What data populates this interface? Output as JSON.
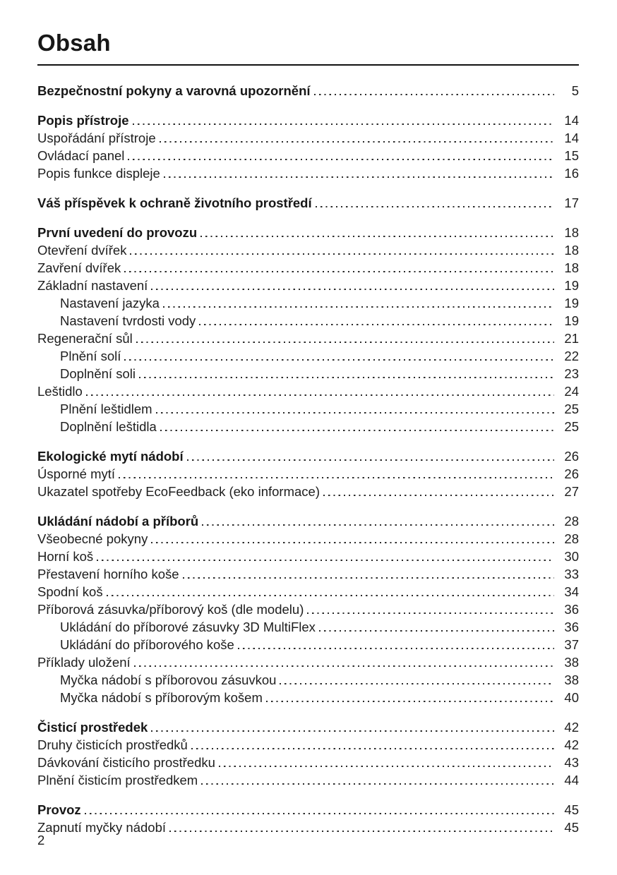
{
  "page": {
    "title": "Obsah",
    "page_number": "2"
  },
  "colors": {
    "text": "#1e1e1e",
    "rule": "#111111",
    "background": "#ffffff"
  },
  "toc": {
    "entries": [
      {
        "label": "Bezpečnostní pokyny a varovná upozornění",
        "page": "5",
        "bold": true,
        "indent": 0,
        "gap": false
      },
      {
        "label": "Popis přístroje",
        "page": "14",
        "bold": true,
        "indent": 0,
        "gap": true
      },
      {
        "label": "Uspořádání přístroje",
        "page": "14",
        "bold": false,
        "indent": 0,
        "gap": false
      },
      {
        "label": "Ovládací panel",
        "page": "15",
        "bold": false,
        "indent": 0,
        "gap": false
      },
      {
        "label": "Popis funkce displeje",
        "page": "16",
        "bold": false,
        "indent": 0,
        "gap": false
      },
      {
        "label": "Váš příspěvek k ochraně životního prostředí",
        "page": "17",
        "bold": true,
        "indent": 0,
        "gap": true
      },
      {
        "label": "První uvedení do provozu",
        "page": "18",
        "bold": true,
        "indent": 0,
        "gap": true
      },
      {
        "label": "Otevření dvířek",
        "page": "18",
        "bold": false,
        "indent": 0,
        "gap": false
      },
      {
        "label": "Zavření dvířek",
        "page": "18",
        "bold": false,
        "indent": 0,
        "gap": false
      },
      {
        "label": "Základní nastavení",
        "page": "19",
        "bold": false,
        "indent": 0,
        "gap": false
      },
      {
        "label": "Nastavení jazyka",
        "page": "19",
        "bold": false,
        "indent": 1,
        "gap": false
      },
      {
        "label": "Nastavení tvrdosti vody",
        "page": "19",
        "bold": false,
        "indent": 1,
        "gap": false
      },
      {
        "label": "Regenerační sůl",
        "page": "21",
        "bold": false,
        "indent": 0,
        "gap": false
      },
      {
        "label": "Plnění solí",
        "page": "22",
        "bold": false,
        "indent": 1,
        "gap": false
      },
      {
        "label": "Doplnění soli",
        "page": "23",
        "bold": false,
        "indent": 1,
        "gap": false
      },
      {
        "label": "Leštidlo",
        "page": "24",
        "bold": false,
        "indent": 0,
        "gap": false
      },
      {
        "label": "Plnění leštidlem",
        "page": "25",
        "bold": false,
        "indent": 1,
        "gap": false
      },
      {
        "label": "Doplnění leštidla",
        "page": "25",
        "bold": false,
        "indent": 1,
        "gap": false
      },
      {
        "label": "Ekologické mytí nádobí",
        "page": "26",
        "bold": true,
        "indent": 0,
        "gap": true
      },
      {
        "label": "Úsporné mytí",
        "page": "26",
        "bold": false,
        "indent": 0,
        "gap": false
      },
      {
        "label": "Ukazatel spotřeby EcoFeedback (eko informace)",
        "page": "27",
        "bold": false,
        "indent": 0,
        "gap": false
      },
      {
        "label": "Ukládání nádobí a příborů",
        "page": "28",
        "bold": true,
        "indent": 0,
        "gap": true
      },
      {
        "label": "Všeobecné pokyny",
        "page": "28",
        "bold": false,
        "indent": 0,
        "gap": false
      },
      {
        "label": "Horní koš",
        "page": "30",
        "bold": false,
        "indent": 0,
        "gap": false
      },
      {
        "label": "Přestavení horního koše",
        "page": "33",
        "bold": false,
        "indent": 0,
        "gap": false
      },
      {
        "label": "Spodní koš",
        "page": "34",
        "bold": false,
        "indent": 0,
        "gap": false
      },
      {
        "label": "Příborová zásuvka/příborový koš (dle modelu)",
        "page": "36",
        "bold": false,
        "indent": 0,
        "gap": false
      },
      {
        "label": "Ukládání do příborové zásuvky 3D MultiFlex",
        "page": "36",
        "bold": false,
        "indent": 1,
        "gap": false
      },
      {
        "label": "Ukládání do příborového koše",
        "page": "37",
        "bold": false,
        "indent": 1,
        "gap": false
      },
      {
        "label": "Příklady uložení",
        "page": "38",
        "bold": false,
        "indent": 0,
        "gap": false
      },
      {
        "label": "Myčka nádobí s příborovou zásuvkou",
        "page": "38",
        "bold": false,
        "indent": 1,
        "gap": false
      },
      {
        "label": "Myčka nádobí s příborovým košem",
        "page": "40",
        "bold": false,
        "indent": 1,
        "gap": false
      },
      {
        "label": "Čisticí prostředek",
        "page": "42",
        "bold": true,
        "indent": 0,
        "gap": true
      },
      {
        "label": "Druhy čisticích prostředků",
        "page": "42",
        "bold": false,
        "indent": 0,
        "gap": false
      },
      {
        "label": "Dávkování čisticího prostředku",
        "page": "43",
        "bold": false,
        "indent": 0,
        "gap": false
      },
      {
        "label": "Plnění čisticím prostředkem",
        "page": "44",
        "bold": false,
        "indent": 0,
        "gap": false
      },
      {
        "label": "Provoz",
        "page": "45",
        "bold": true,
        "indent": 0,
        "gap": true
      },
      {
        "label": "Zapnutí myčky nádobí",
        "page": "45",
        "bold": false,
        "indent": 0,
        "gap": false
      }
    ]
  }
}
